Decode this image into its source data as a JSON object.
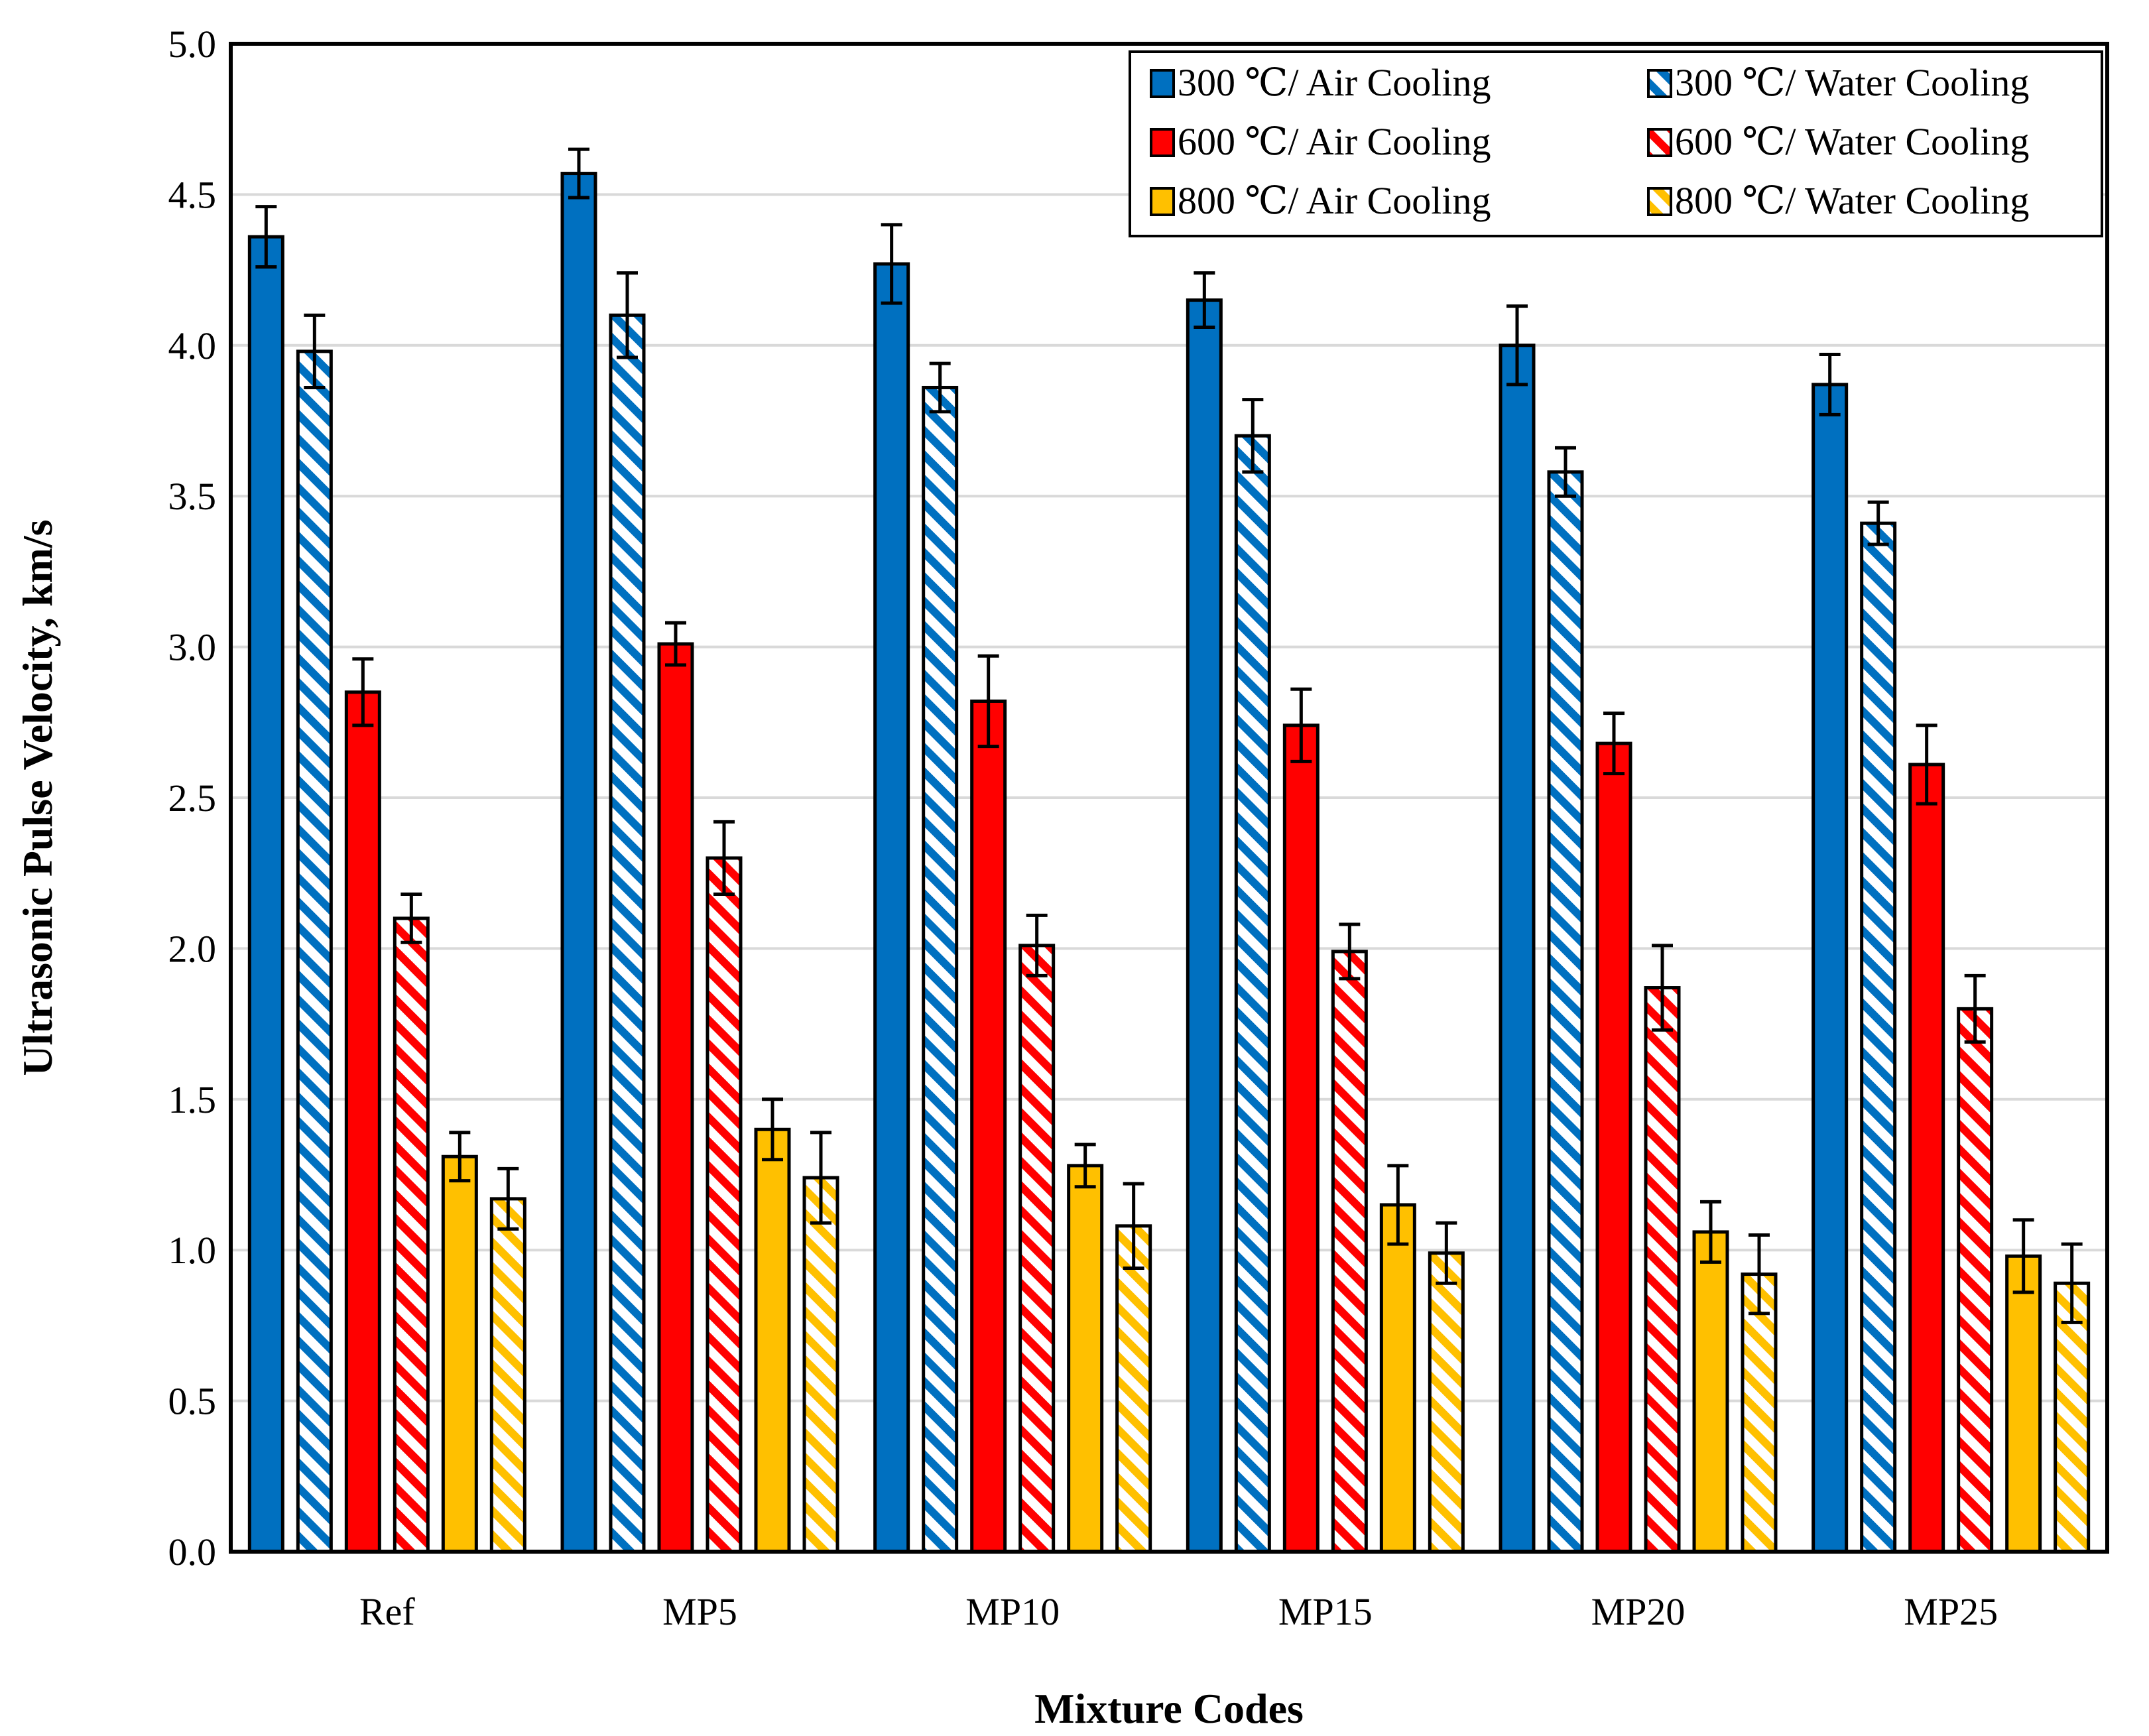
{
  "chart_data": {
    "type": "bar",
    "title": "",
    "xlabel": "Mixture Codes",
    "ylabel": "Ultrasonic Pulse Velocity, km/s",
    "ylim": [
      0,
      5
    ],
    "yticks": [
      "0.0",
      "0.5",
      "1.0",
      "1.5",
      "2.0",
      "2.5",
      "3.0",
      "3.5",
      "4.0",
      "4.5",
      "5.0"
    ],
    "grid": "horizontal",
    "legend_position": "top-right",
    "categories": [
      "Ref",
      "MP5",
      "MP10",
      "MP15",
      "MP20",
      "MP25"
    ],
    "series": [
      {
        "name": "300 ℃/ Air Cooling",
        "color": "#0070C0",
        "pattern": "solid",
        "values": [
          4.36,
          4.57,
          4.27,
          4.15,
          4.0,
          3.87
        ],
        "errors": [
          0.1,
          0.08,
          0.13,
          0.09,
          0.13,
          0.1
        ]
      },
      {
        "name": "300 ℃/ Water Cooling",
        "color": "#0070C0",
        "pattern": "hatched",
        "values": [
          3.98,
          4.1,
          3.86,
          3.7,
          3.58,
          3.41
        ],
        "errors": [
          0.12,
          0.14,
          0.08,
          0.12,
          0.08,
          0.07
        ]
      },
      {
        "name": "600 ℃/ Air Cooling",
        "color": "#FF0000",
        "pattern": "solid",
        "values": [
          2.85,
          3.01,
          2.82,
          2.74,
          2.68,
          2.61
        ],
        "errors": [
          0.11,
          0.07,
          0.15,
          0.12,
          0.1,
          0.13
        ]
      },
      {
        "name": "600 ℃/ Water Cooling",
        "color": "#FF0000",
        "pattern": "hatched",
        "values": [
          2.1,
          2.3,
          2.01,
          1.99,
          1.87,
          1.8
        ],
        "errors": [
          0.08,
          0.12,
          0.1,
          0.09,
          0.14,
          0.11
        ]
      },
      {
        "name": "800 ℃/ Air Cooling",
        "color": "#FFC000",
        "pattern": "solid",
        "values": [
          1.31,
          1.4,
          1.28,
          1.15,
          1.06,
          0.98
        ],
        "errors": [
          0.08,
          0.1,
          0.07,
          0.13,
          0.1,
          0.12
        ]
      },
      {
        "name": "800 ℃/ Water Cooling",
        "color": "#FFC000",
        "pattern": "hatched",
        "values": [
          1.17,
          1.24,
          1.08,
          0.99,
          0.92,
          0.89
        ],
        "errors": [
          0.1,
          0.15,
          0.14,
          0.1,
          0.13,
          0.13
        ]
      }
    ]
  }
}
